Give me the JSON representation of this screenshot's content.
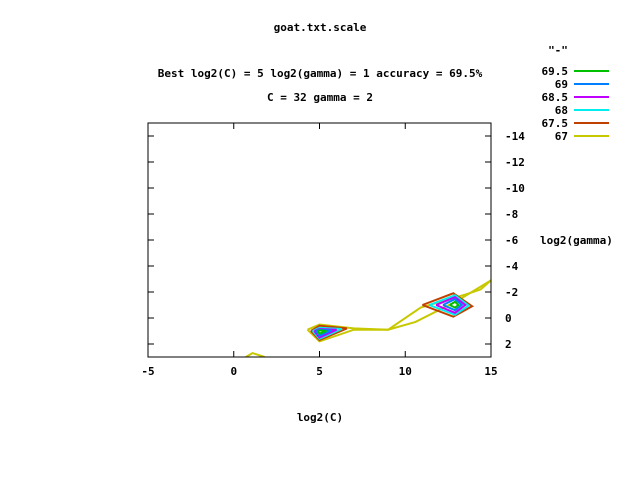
{
  "chart_data": {
    "type": "line",
    "subtype": "contour",
    "title": "goat.txt.scale",
    "subtitle_lines": [
      "Best log2(C) = 5  log2(gamma) = 1  accuracy = 69.5%",
      "C = 32  gamma = 2"
    ],
    "xlabel": "log2(C)",
    "ylabel": "log2(gamma)",
    "xlim": [
      -5,
      15
    ],
    "ylim": [
      -15,
      3
    ],
    "y_reversed": true,
    "y_axis_side": "right",
    "xticks": [
      -5,
      0,
      5,
      10,
      15
    ],
    "yticks": [
      -14,
      -12,
      -10,
      -8,
      -6,
      -4,
      -2,
      0,
      2
    ],
    "grid": false,
    "legend": {
      "title": "\"-\"",
      "placement": "top-right",
      "entries": [
        {
          "label": "69.5",
          "color": "#00c000"
        },
        {
          "label": "69",
          "color": "#0080ff"
        },
        {
          "label": "68.5",
          "color": "#c000ff"
        },
        {
          "label": "68",
          "color": "#00eeee"
        },
        {
          "label": "67.5",
          "color": "#c04000"
        },
        {
          "label": "67",
          "color": "#c8c800"
        }
      ]
    },
    "series": [
      {
        "name": "67",
        "color": "#c8c800",
        "paths": [
          [
            [
              0.7,
              3
            ],
            [
              1.1,
              2.7
            ],
            [
              1.8,
              3
            ]
          ],
          [
            [
              4.3,
              0.9
            ],
            [
              5.0,
              0.5
            ],
            [
              7.0,
              0.8
            ],
            [
              9.0,
              0.9
            ],
            [
              10.6,
              0.3
            ],
            [
              13.0,
              -1.3
            ],
            [
              15.0,
              -2.9
            ]
          ],
          [
            [
              4.3,
              0.9
            ],
            [
              5.0,
              1.8
            ],
            [
              7.0,
              0.9
            ],
            [
              9.0,
              0.9
            ],
            [
              10.9,
              -0.8
            ],
            [
              13.5,
              -1.8
            ],
            [
              14.4,
              -2.2
            ],
            [
              15.0,
              -2.9
            ]
          ]
        ]
      },
      {
        "name": "67.5",
        "color": "#c04000",
        "paths": [
          [
            [
              4.5,
              1.0
            ],
            [
              5.0,
              0.6
            ],
            [
              6.6,
              0.8
            ],
            [
              5.0,
              1.7
            ],
            [
              4.5,
              1.0
            ]
          ],
          [
            [
              11.0,
              -1.0
            ],
            [
              12.8,
              -1.9
            ],
            [
              13.9,
              -0.9
            ],
            [
              12.8,
              -0.1
            ],
            [
              11.0,
              -1.0
            ]
          ]
        ]
      },
      {
        "name": "68",
        "color": "#00eeee",
        "paths": [
          [
            [
              4.6,
              1.0
            ],
            [
              5.0,
              0.75
            ],
            [
              6.3,
              0.85
            ],
            [
              5.0,
              1.6
            ],
            [
              4.6,
              1.0
            ]
          ],
          [
            [
              11.4,
              -1.0
            ],
            [
              12.9,
              -1.75
            ],
            [
              13.7,
              -0.95
            ],
            [
              12.9,
              -0.25
            ],
            [
              11.4,
              -1.0
            ]
          ]
        ]
      },
      {
        "name": "68.5",
        "color": "#c000ff",
        "paths": [
          [
            [
              4.7,
              1.0
            ],
            [
              5.0,
              0.85
            ],
            [
              6.0,
              0.9
            ],
            [
              5.0,
              1.5
            ],
            [
              4.7,
              1.0
            ]
          ],
          [
            [
              11.8,
              -1.0
            ],
            [
              12.9,
              -1.6
            ],
            [
              13.5,
              -1.0
            ],
            [
              12.9,
              -0.4
            ],
            [
              11.8,
              -1.0
            ]
          ]
        ]
      },
      {
        "name": "69",
        "color": "#0080ff",
        "paths": [
          [
            [
              4.8,
              1.0
            ],
            [
              5.0,
              0.9
            ],
            [
              5.7,
              0.95
            ],
            [
              5.0,
              1.35
            ],
            [
              4.8,
              1.0
            ]
          ],
          [
            [
              12.2,
              -1.0
            ],
            [
              12.9,
              -1.45
            ],
            [
              13.3,
              -1.0
            ],
            [
              12.9,
              -0.6
            ],
            [
              12.2,
              -1.0
            ]
          ]
        ]
      },
      {
        "name": "69.5",
        "color": "#00c000",
        "paths": [
          [
            [
              4.9,
              1.0
            ],
            [
              5.0,
              0.95
            ],
            [
              5.4,
              1.0
            ],
            [
              5.0,
              1.2
            ],
            [
              4.9,
              1.0
            ]
          ],
          [
            [
              12.6,
              -1.0
            ],
            [
              12.9,
              -1.25
            ],
            [
              13.1,
              -1.0
            ],
            [
              12.9,
              -0.8
            ],
            [
              12.6,
              -1.0
            ]
          ]
        ]
      }
    ]
  }
}
